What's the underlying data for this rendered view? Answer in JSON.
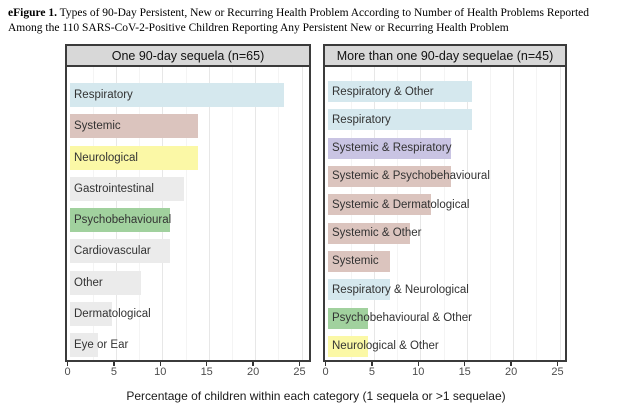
{
  "caption": {
    "label": "eFigure 1.",
    "text": " Types of 90-Day Persistent, New or Recurring Health Problem According to Number of Health Problems Reported Among the 110 SARS-CoV-2-Positive Children Reporting Any Persistent New or Recurring Health Problem"
  },
  "axis": {
    "xlabel": "Percentage of children within each category (1 sequela or >1 sequelae)",
    "ticks": [
      0,
      5,
      10,
      15,
      20,
      25
    ]
  },
  "colors": {
    "palette": {
      "blue": "#d5e8ee",
      "pink": "#dbc4be",
      "yellow": "#fbf8a6",
      "gray": "#ebebeb",
      "green": "#a1d19e",
      "purple": "#c9c4e3"
    },
    "strip_bg": "#d8d8d8",
    "panel_border": "#3b3b3b",
    "grid_major": "#e7e7e7",
    "grid_minor": "#f4f4f4"
  },
  "chart_data": [
    {
      "type": "bar",
      "orientation": "horizontal",
      "title": "One 90-day sequela (n=65)",
      "xlabel": "Percentage of children within each category (1 sequela or >1 sequelae)",
      "xlim": [
        0,
        26.3
      ],
      "xticks": [
        0,
        5,
        10,
        15,
        20,
        25
      ],
      "grid": true,
      "categories": [
        "Respiratory",
        "Systemic",
        "Neurological",
        "Gastrointestinal",
        "Psychobehavioural",
        "Cardiovascular",
        "Other",
        "Dermatological",
        "Eye or Ear"
      ],
      "values": [
        23.1,
        13.8,
        13.8,
        12.3,
        10.8,
        10.8,
        7.7,
        4.6,
        3.1
      ],
      "bar_colors": [
        "blue",
        "pink",
        "yellow",
        "gray",
        "green",
        "gray",
        "gray",
        "gray",
        "gray"
      ]
    },
    {
      "type": "bar",
      "orientation": "horizontal",
      "title": "More than one 90-day sequelae (n=45)",
      "xlabel": "Percentage of children within each category (1 sequela or >1 sequelae)",
      "xlim": [
        0,
        26.3
      ],
      "xticks": [
        0,
        5,
        10,
        15,
        20,
        25
      ],
      "grid": true,
      "categories": [
        "Respiratory & Other",
        "Respiratory",
        "Systemic & Respiratory",
        "Systemic & Psychobehavioural",
        "Systemic & Dermatological",
        "Systemic & Other",
        "Systemic",
        "Respiratory & Neurological",
        "Psychobehavioural & Other",
        "Neurological & Other"
      ],
      "values": [
        15.6,
        15.6,
        13.3,
        13.3,
        11.1,
        8.9,
        6.7,
        6.7,
        4.4,
        4.4
      ],
      "bar_colors": [
        "blue",
        "blue",
        "purple",
        "pink",
        "pink",
        "pink",
        "pink",
        "blue",
        "green",
        "yellow"
      ]
    }
  ]
}
